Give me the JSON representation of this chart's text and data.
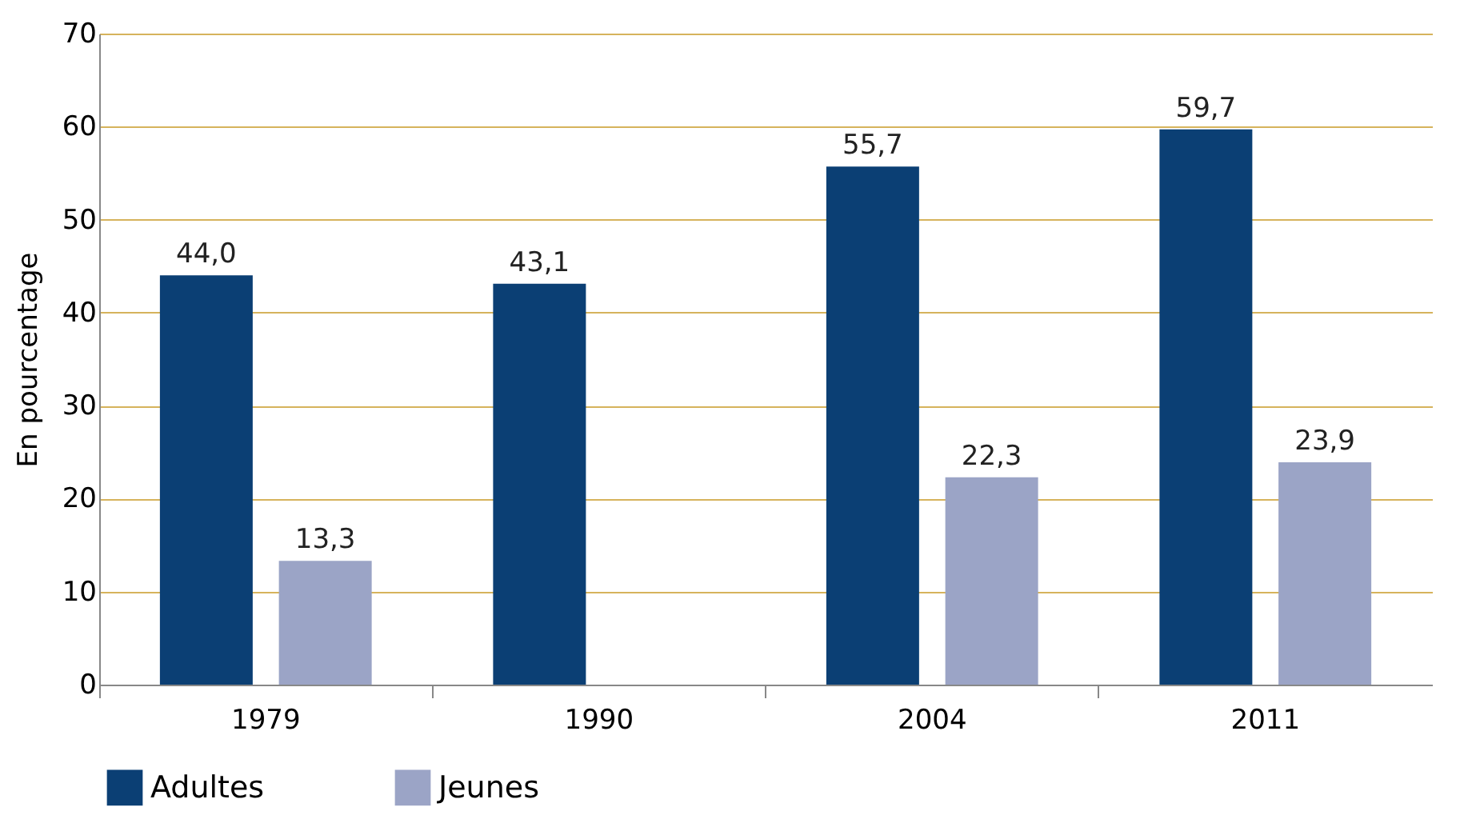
{
  "chart_data": {
    "type": "bar",
    "ylabel": "En pourcentage",
    "categories": [
      "1979",
      "1990",
      "2004",
      "2011"
    ],
    "series": [
      {
        "name": "Adultes",
        "color": "#0b3f74",
        "values": [
          44.0,
          43.1,
          55.7,
          59.7
        ],
        "value_labels": [
          "44,0",
          "43,1",
          "55,7",
          "59,7"
        ]
      },
      {
        "name": "Jeunes",
        "color": "#9ba4c6",
        "values": [
          13.3,
          null,
          22.3,
          23.9
        ],
        "value_labels": [
          "13,3",
          null,
          "22,3",
          "23,9"
        ]
      }
    ],
    "ylim": [
      0,
      70
    ],
    "yticks": [
      0,
      10,
      20,
      30,
      40,
      50,
      60,
      70
    ],
    "grid": "y",
    "legend": "bottom"
  }
}
